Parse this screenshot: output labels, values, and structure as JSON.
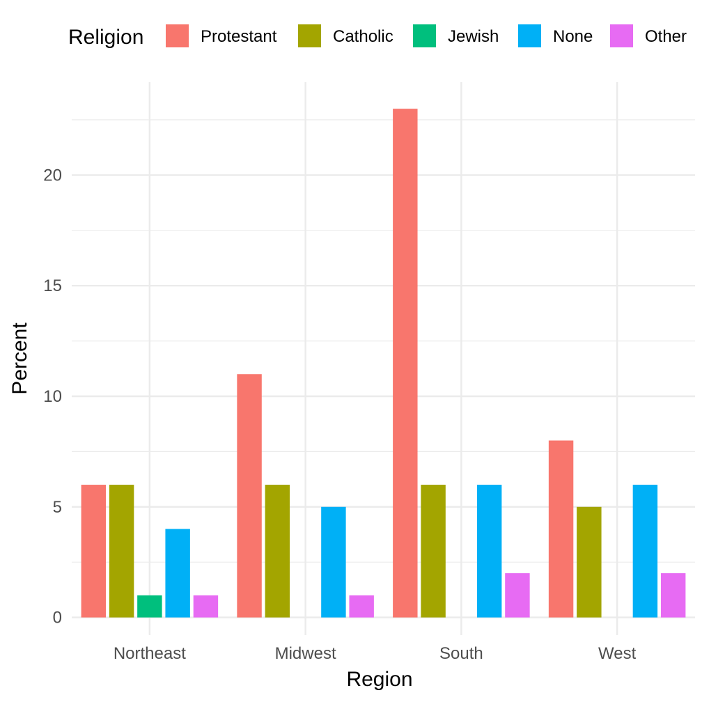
{
  "chart_data": {
    "type": "bar",
    "xlabel": "Region",
    "ylabel": "Percent",
    "categories": [
      "Northeast",
      "Midwest",
      "South",
      "West"
    ],
    "legend": {
      "title": "Religion",
      "position": "top"
    },
    "ylim": [
      -0.8,
      24.2
    ],
    "yticks": [
      0,
      5,
      10,
      15,
      20
    ],
    "grid": true,
    "series": [
      {
        "name": "Protestant",
        "color": "#F8766D",
        "values": [
          6,
          11,
          23,
          8
        ]
      },
      {
        "name": "Catholic",
        "color": "#A3A500",
        "values": [
          6,
          6,
          6,
          5
        ]
      },
      {
        "name": "Jewish",
        "color": "#00BF7D",
        "values": [
          1,
          null,
          null,
          null
        ]
      },
      {
        "name": "None",
        "color": "#00B0F6",
        "values": [
          4,
          5,
          6,
          6
        ]
      },
      {
        "name": "Other",
        "color": "#E76BF3",
        "values": [
          1,
          1,
          2,
          2
        ]
      }
    ]
  }
}
